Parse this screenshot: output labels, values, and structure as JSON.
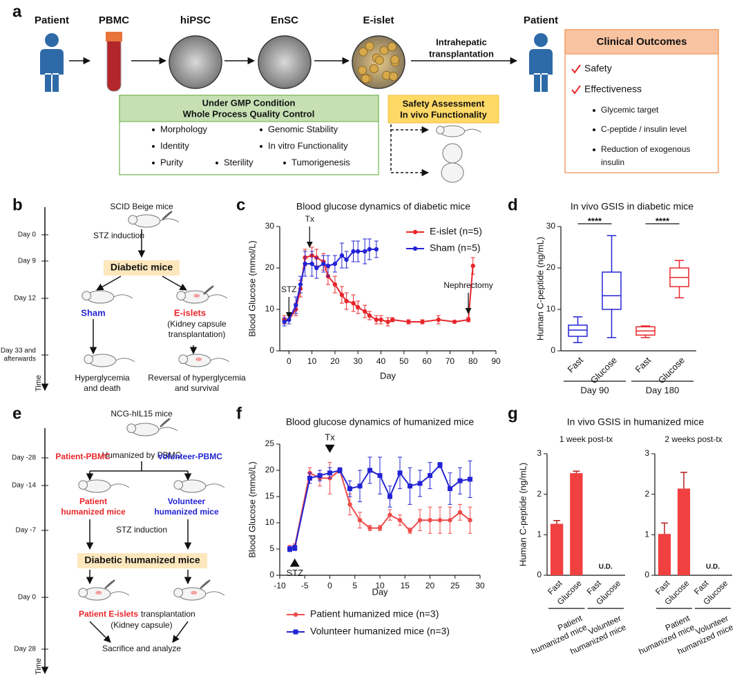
{
  "panel_labels": [
    "a",
    "b",
    "c",
    "d",
    "e",
    "f",
    "g"
  ],
  "panels": {
    "workflow": {
      "stages": [
        "Patient",
        "PBMC",
        "hiPSC",
        "EnSC",
        "E-islet",
        "Patient"
      ],
      "transfer": [
        "Intrahepatic",
        "transplantation"
      ],
      "qc_box": {
        "title": [
          "Under GMP Condition",
          "Whole Process Quality Control"
        ],
        "items": [
          "Morphology",
          "Genomic Stability",
          "Identity",
          "In vitro Functionality",
          "Purity",
          "Sterility",
          "Tumorigenesis"
        ]
      },
      "safety_box": {
        "title": [
          "Safety Assessment",
          "In vivo Functionality"
        ]
      },
      "outcomes": {
        "title": "Clinical Outcomes",
        "checks": [
          "Safety",
          "Effectiveness"
        ],
        "bullets": [
          [
            "Glycemic target"
          ],
          [
            "C-peptide / insulin level"
          ],
          [
            "Reduction of exogenous",
            "insulin"
          ]
        ]
      }
    },
    "mouse_model": {
      "days": [
        [
          "Day 0"
        ],
        [
          "Day 9"
        ],
        [
          "Day 12"
        ],
        [
          "Day 33 and",
          "afterwards"
        ]
      ],
      "axis": "Time",
      "strain": "SCID Beige mice",
      "induction": "STZ induction",
      "diabetic": "Diabetic mice",
      "sham": "Sham",
      "treated": "E-islets",
      "treated_note": [
        "(Kidney capsule",
        "transplantation)"
      ],
      "sham_outcome": [
        "Hyperglycemia",
        "and death"
      ],
      "treated_outcome": [
        "Reversal of hyperglycemia",
        "and survival"
      ]
    },
    "humanized_model": {
      "days": [
        [
          "Day -28"
        ],
        [
          "Day -14"
        ],
        [
          "Day -7"
        ],
        [
          "Day 0"
        ],
        [
          "Day 28"
        ]
      ],
      "axis": "Time",
      "strain": "NCG-hIL15 mice",
      "humanization": "Humanized by PBMC",
      "patient_pbmc": "Patient-PBMC",
      "volunteer_pbmc": "Volunteer-PBMC",
      "patient_mice": [
        "Patient",
        "humanized mice"
      ],
      "volunteer_mice": [
        "Volunteer",
        "humanized mice"
      ],
      "induction": "STZ induction",
      "diabetic": "Diabetic humanized mice",
      "transplant": [
        "Patient E-islets",
        "transplantation"
      ],
      "transplant_note": "(Kidney capsule)",
      "endpoint": "Sacrifice and analyze"
    }
  },
  "chart_data": [
    {
      "type": "line",
      "title": "Blood glucose dynamics of diabetic mice",
      "xlabel": "Day",
      "ylabel": "Blood Glucose (mmol/L)",
      "xlim": [
        -4,
        90
      ],
      "xticks": [
        0,
        10,
        20,
        30,
        40,
        50,
        60,
        70,
        80,
        90
      ],
      "ylim": [
        0,
        30
      ],
      "yticks": [
        0,
        10,
        20,
        30
      ],
      "legend": "upper right",
      "series": [
        {
          "name": "E-islet (n=5)",
          "color": "#e8262a",
          "marker": "circle",
          "x": [
            -2,
            0,
            3,
            5,
            7,
            10,
            12,
            15,
            17,
            20,
            23,
            25,
            28,
            30,
            33,
            35,
            38,
            40,
            43,
            45,
            52,
            58,
            65,
            72,
            78,
            80
          ],
          "values": [
            7.5,
            7.5,
            10,
            15,
            22.5,
            23,
            22.5,
            21.5,
            18,
            16,
            13.5,
            12,
            11.5,
            10.5,
            9.5,
            8.5,
            7.5,
            7.5,
            7,
            7.5,
            7,
            7,
            7.5,
            7,
            7.5,
            20.5
          ],
          "errors": [
            1,
            1,
            1.5,
            2,
            2,
            2,
            2,
            2,
            2,
            2,
            2,
            2,
            2,
            1.5,
            1.5,
            1,
            1,
            1,
            1,
            0.5,
            0.5,
            0.5,
            1,
            0.3,
            0.5,
            2
          ]
        },
        {
          "name": "Sham (n=5)",
          "color": "#2323d6",
          "marker": "circle",
          "x": [
            -2,
            0,
            3,
            5,
            7,
            10,
            12,
            15,
            17,
            20,
            23,
            25,
            28,
            30,
            33,
            35,
            38
          ],
          "values": [
            7,
            7.5,
            11,
            16,
            21,
            21,
            20,
            21,
            20.5,
            21,
            23,
            22,
            24,
            24,
            24,
            24.5,
            24.5
          ],
          "errors": [
            1,
            1,
            2,
            2,
            3,
            3,
            2.5,
            2,
            2.5,
            2,
            3,
            2,
            2.5,
            2.5,
            3,
            2.5,
            2
          ]
        }
      ],
      "annotations": [
        {
          "text": "STZ",
          "x": 0,
          "y": 8,
          "direction": "down",
          "style": "arrow"
        },
        {
          "text": "Tx",
          "x": 9,
          "y": 25,
          "direction": "down",
          "style": "arrow"
        },
        {
          "text": "Nephrectomy",
          "x": 78,
          "y": 9,
          "direction": "down",
          "style": "arrow"
        }
      ]
    },
    {
      "type": "box",
      "title": "In vivo GSIS in diabetic mice",
      "ylabel": "Human C-peptide (ng/mL)",
      "ylim": [
        0,
        30
      ],
      "yticks": [
        0,
        10,
        20,
        30
      ],
      "categories": [
        "Fast",
        "Glucose",
        "Fast",
        "Glucose"
      ],
      "groups": [
        "Day 90",
        "Day 180"
      ],
      "colors": [
        "#2323d6",
        "#2323d6",
        "#e8262a",
        "#e8262a"
      ],
      "boxes": [
        {
          "min": 2,
          "q1": 3.5,
          "median": 5,
          "q3": 6.2,
          "max": 8.2
        },
        {
          "min": 3.2,
          "q1": 10,
          "median": 13.3,
          "q3": 19,
          "max": 27.8
        },
        {
          "min": 3.2,
          "q1": 3.8,
          "median": 4.8,
          "q3": 5.8,
          "max": 6
        },
        {
          "min": 12.8,
          "q1": 15.5,
          "median": 17.7,
          "q3": 20,
          "max": 21.8
        }
      ],
      "significance": [
        "****",
        "****"
      ]
    },
    {
      "type": "line",
      "title": "Blood glucose dynamics of humanized mice",
      "xlabel": "Day",
      "ylabel": "Blood Glucose (mmol/L)",
      "xlim": [
        -10,
        30
      ],
      "xticks": [
        -10,
        -5,
        0,
        5,
        10,
        15,
        20,
        25,
        30
      ],
      "ylim": [
        0,
        25
      ],
      "yticks": [
        0,
        5,
        10,
        15,
        20,
        25
      ],
      "legend": "below",
      "series": [
        {
          "name": "Patient humanized mice (n=3)",
          "color": "#ef4b4b",
          "marker": "circle",
          "x": [
            -8,
            -7,
            -4,
            -2,
            0,
            2,
            4,
            6,
            8,
            10,
            12,
            14,
            16,
            18,
            20,
            22,
            24,
            26,
            28
          ],
          "values": [
            5.2,
            5.5,
            19.5,
            18.5,
            18.5,
            20,
            13.5,
            10.5,
            9,
            9,
            11.5,
            10.5,
            8.5,
            10.5,
            10.5,
            10.5,
            10.5,
            12,
            10.5
          ],
          "errors": [
            0.5,
            0.5,
            1,
            1.5,
            3,
            0.5,
            2,
            1.5,
            0.5,
            0.5,
            1,
            1,
            0.5,
            2,
            2.5,
            2.5,
            2.5,
            1.5,
            2.5
          ]
        },
        {
          "name": "Volunteer humanized mice (n=3)",
          "color": "#2323d6",
          "marker": "square",
          "x": [
            -8,
            -7,
            -4,
            -2,
            0,
            2,
            4,
            6,
            8,
            10,
            12,
            14,
            16,
            18,
            20,
            22,
            24,
            26,
            28
          ],
          "values": [
            5,
            5.2,
            18.5,
            19,
            19.5,
            20,
            16.5,
            17,
            20,
            19,
            15,
            19.5,
            17,
            17.5,
            19,
            21,
            16.5,
            18,
            18.3
          ],
          "errors": [
            0.5,
            0.5,
            1,
            1,
            1,
            0.5,
            1.5,
            3,
            2.5,
            3.5,
            2,
            3,
            3.5,
            2.5,
            2.5,
            0.5,
            3,
            2.5,
            3.5
          ]
        }
      ],
      "annotations": [
        {
          "text": "Tx",
          "x": 0,
          "y": 23.3,
          "direction": "down",
          "style": "triangle"
        },
        {
          "text": "STZ",
          "x": -7,
          "y": 3.2,
          "direction": "up",
          "style": "triangle"
        }
      ]
    },
    {
      "type": "bar",
      "title": "In vivo GSIS in humanized mice",
      "subtitle": "1 week post-tx",
      "ylabel": "Human C-peptide (ng/mL)",
      "ylim": [
        0,
        3
      ],
      "yticks": [
        0,
        1,
        2,
        3
      ],
      "color": "#f04040",
      "categories": [
        "Fast",
        "Glucose",
        "Fast",
        "Glucose"
      ],
      "values": [
        1.27,
        2.52,
        null,
        null
      ],
      "errors": [
        0.08,
        0.05,
        null,
        null
      ],
      "missing_label": "U.D.",
      "groups": [
        [
          "Patient",
          "humanized mice"
        ],
        [
          "Volunteer",
          "humanized mice"
        ]
      ]
    },
    {
      "type": "bar",
      "subtitle": "2 weeks post-tx",
      "ylim": [
        0,
        3
      ],
      "yticks": [
        0,
        1,
        2,
        3
      ],
      "color": "#f04040",
      "categories": [
        "Fast",
        "Glucose",
        "Fast",
        "Glucose"
      ],
      "values": [
        1.02,
        2.14,
        null,
        null
      ],
      "errors": [
        0.27,
        0.4,
        null,
        null
      ],
      "missing_label": "U.D.",
      "groups": [
        [
          "Patient",
          "humanized mice"
        ],
        [
          "Volunteer",
          "humanized mice"
        ]
      ]
    }
  ]
}
